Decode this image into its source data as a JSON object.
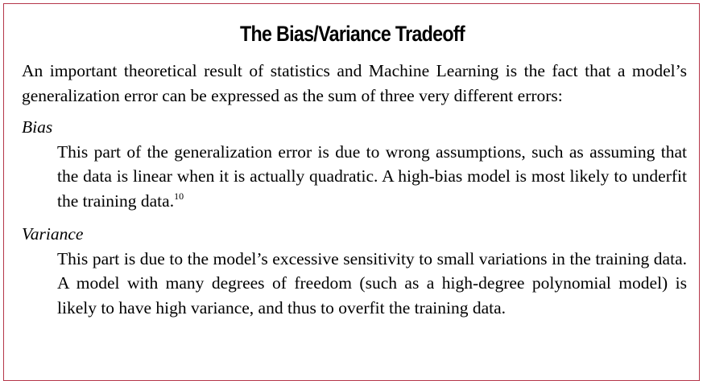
{
  "sidebar": {
    "title": "The Bias/Variance Tradeoff",
    "intro": "An important theoretical result of statistics and Machine Learning is the fact that a model’s generalization error can be expressed as the sum of three very different errors:",
    "items": [
      {
        "term": "Bias",
        "definition": "This part of the generalization error is due to wrong assumptions, such as assuming that the data is linear when it is actually quadratic. A high-bias model is most likely to underfit the training data.",
        "footnote": "10"
      },
      {
        "term": "Variance",
        "definition": "This part is due to the model’s excessive sensitivity to small variations in the training data. A model with many degrees of freedom (such as a high-degree polynomial model) is likely to have high variance, and thus to overfit the training data.",
        "footnote": ""
      }
    ]
  }
}
